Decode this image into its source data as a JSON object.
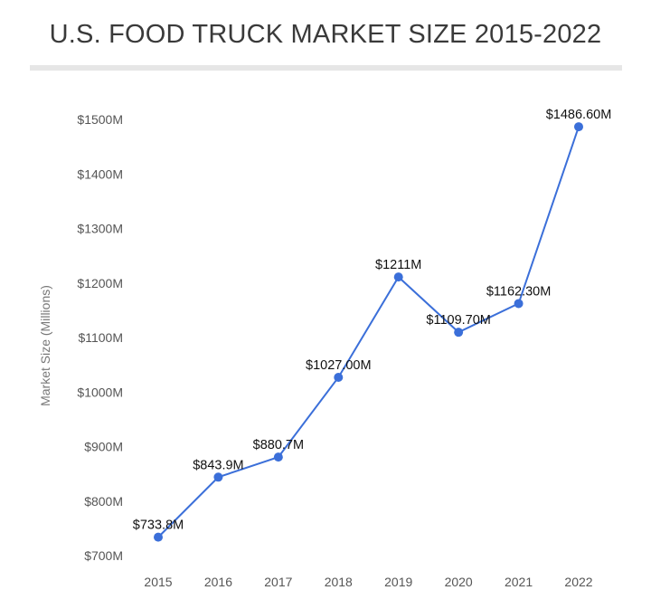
{
  "chart_data": {
    "type": "line",
    "title": "U.S. FOOD TRUCK MARKET SIZE 2015-2022",
    "xlabel": "",
    "ylabel": "Market Size (Millions)",
    "categories": [
      "2015",
      "2016",
      "2017",
      "2018",
      "2019",
      "2020",
      "2021",
      "2022"
    ],
    "values": [
      733.8,
      843.9,
      880.7,
      1027.0,
      1211,
      1109.7,
      1162.3,
      1486.6
    ],
    "data_labels": [
      "$733.8M",
      "$843.9M",
      "$880.7M",
      "$1027.00M",
      "$1211M",
      "$1109.70M",
      "$1162.30M",
      "$1486.60M"
    ],
    "ylim": [
      700,
      1500
    ],
    "yticks": [
      700,
      800,
      900,
      1000,
      1100,
      1200,
      1300,
      1400,
      1500
    ],
    "ytick_labels": [
      "$700M",
      "$800M",
      "$900M",
      "$1000M",
      "$1100M",
      "$1200M",
      "$1300M",
      "$1400M",
      "$1500M"
    ],
    "grid": false,
    "legend": "none",
    "colors": {
      "line": "#3b6fd9",
      "marker": "#3b6fd9"
    }
  }
}
